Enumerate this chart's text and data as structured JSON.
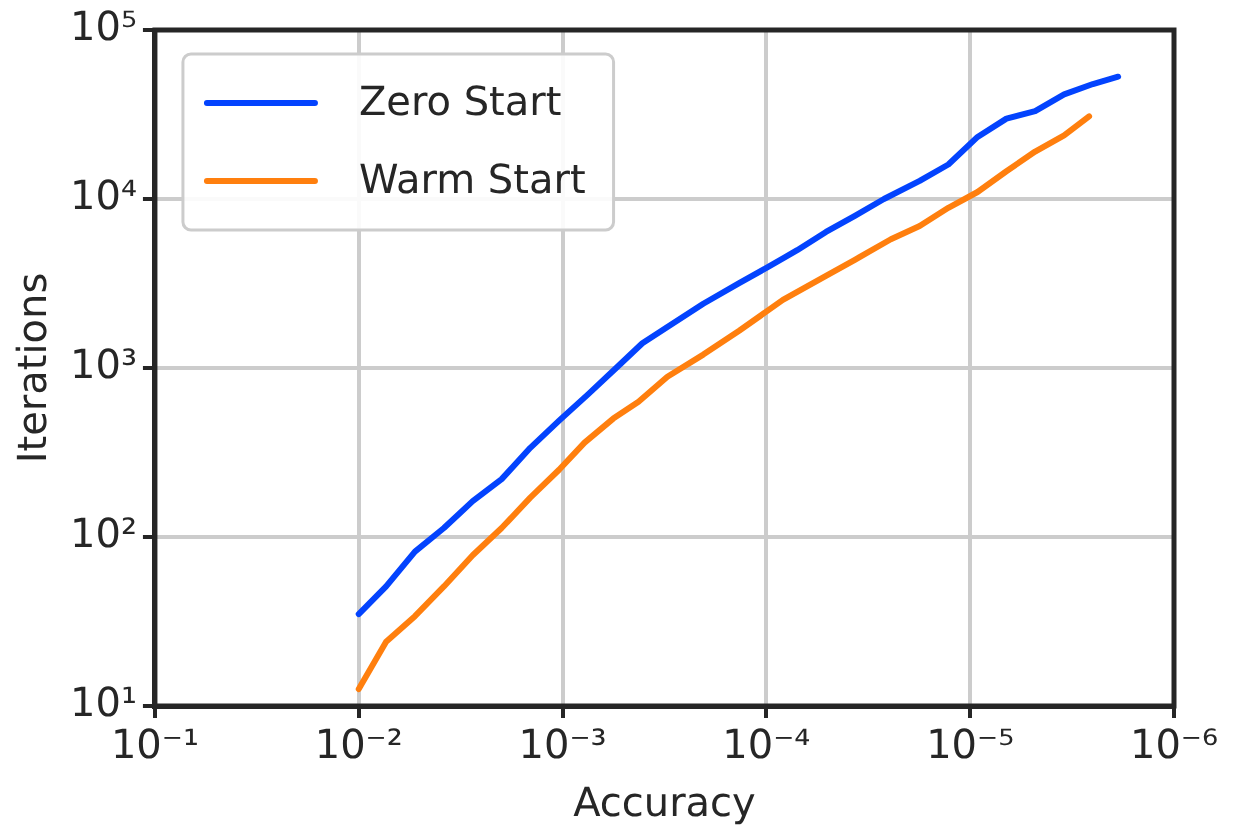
{
  "chart_data": {
    "type": "line",
    "xlabel": "Accuracy",
    "ylabel": "Iterations",
    "log": "xy",
    "grid": true,
    "legend": "top left",
    "xlim": [
      0.1,
      1e-06
    ],
    "xticks": [
      {
        "value": 0.1,
        "label": "10⁻¹"
      },
      {
        "value": 0.01,
        "label": "10⁻²"
      },
      {
        "value": 0.001,
        "label": "10⁻³"
      },
      {
        "value": 0.0001,
        "label": "10⁻⁴"
      },
      {
        "value": 1e-05,
        "label": "10⁻⁵"
      },
      {
        "value": 1e-06,
        "label": "10⁻⁶"
      }
    ],
    "ylim": [
      10,
      100000
    ],
    "yticks": [
      {
        "value": 10,
        "label": "10¹"
      },
      {
        "value": 100,
        "label": "10²"
      },
      {
        "value": 1000,
        "label": "10³"
      },
      {
        "value": 10000,
        "label": "10⁴"
      },
      {
        "value": 100000,
        "label": "10⁵"
      }
    ],
    "series": [
      {
        "name": "Zero Start",
        "color": "#0343fe",
        "x": [
          0.01,
          0.00734,
          0.0053,
          0.00382,
          0.00276,
          0.00199,
          0.00144,
          0.00104,
          0.00075,
          0.000541,
          0.000406,
          0.000306,
          0.000204,
          0.000136,
          9.8e-05,
          7.06e-05,
          5.1e-05,
          3.68e-05,
          2.65e-05,
          1.77e-05,
          1.28e-05,
          9.2e-06,
          6.64e-06,
          4.8e-06,
          3.46e-06,
          2.5e-06,
          1.88e-06
        ],
        "values": [
          35,
          51,
          82,
          113,
          163,
          220,
          337,
          488,
          698,
          1010,
          1400,
          1750,
          2400,
          3180,
          3960,
          4980,
          6380,
          7950,
          10000,
          12800,
          16000,
          23300,
          29900,
          33100,
          41600,
          47900,
          52900
        ]
      },
      {
        "name": "Warm Start",
        "color": "#ff7f0e",
        "x": [
          0.01,
          0.00734,
          0.0053,
          0.00382,
          0.00276,
          0.00199,
          0.00144,
          0.00104,
          0.00078,
          0.000564,
          0.000424,
          0.000306,
          0.000204,
          0.000136,
          8.3e-05,
          5.1e-05,
          3.68e-05,
          2.45e-05,
          1.77e-05,
          1.28e-05,
          9.2e-06,
          6.64e-06,
          4.8e-06,
          3.46e-06,
          2.61e-06
        ],
        "values": [
          12.6,
          24,
          34,
          51,
          78,
          113,
          171,
          250,
          362,
          502,
          632,
          888,
          1200,
          1660,
          2530,
          3510,
          4370,
          5780,
          6920,
          8870,
          11000,
          14600,
          19100,
          23800,
          30800
        ]
      }
    ]
  }
}
